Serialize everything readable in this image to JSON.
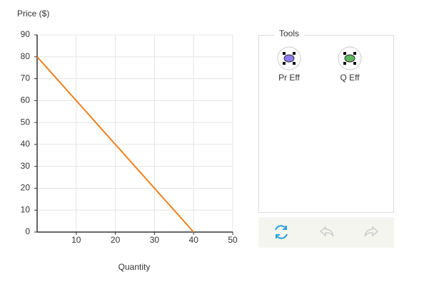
{
  "chart_data": {
    "type": "line",
    "y_label": "Price ($)",
    "x_label": "Quantity",
    "x": [
      0,
      40
    ],
    "series": [
      {
        "color": "#f07f1e",
        "values": [
          80,
          0
        ]
      }
    ],
    "xlim": [
      0,
      50
    ],
    "ylim": [
      0,
      90
    ],
    "xticks": [
      10,
      20,
      30,
      40,
      50
    ],
    "yticks": [
      0,
      10,
      20,
      30,
      40,
      50,
      60,
      70,
      80,
      90
    ],
    "grid": true
  },
  "tools": {
    "title": "Tools",
    "items": [
      "Pr Eff",
      "Q Eff"
    ]
  }
}
